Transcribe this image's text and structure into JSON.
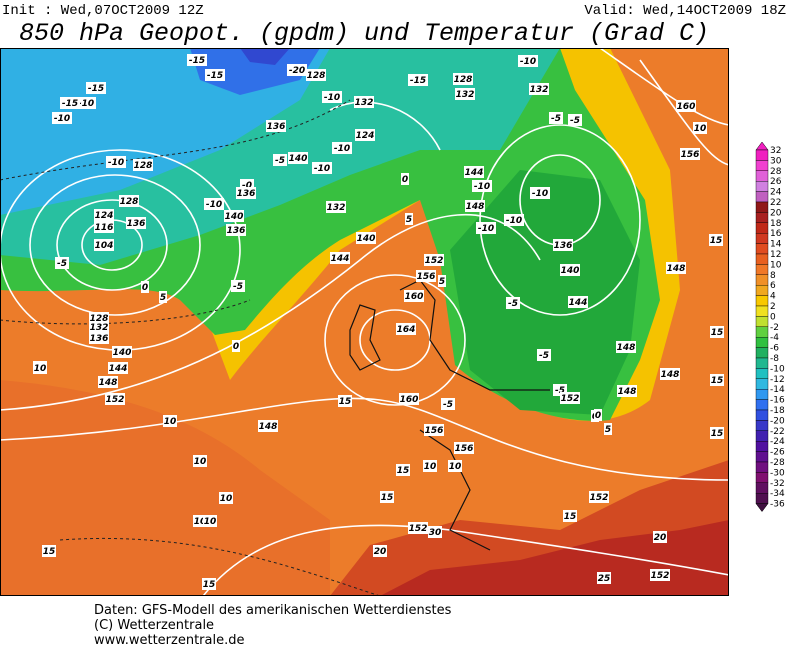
{
  "header": {
    "init": "Init : Wed,07OCT2009 12Z",
    "valid": "Valid: Wed,14OCT2009 18Z",
    "title": "850 hPa Geopot. (gpdm) und Temperatur (Grad C)"
  },
  "legend": {
    "levels": [
      32,
      30,
      28,
      26,
      24,
      22,
      20,
      18,
      16,
      14,
      12,
      10,
      8,
      6,
      4,
      2,
      0,
      -2,
      -4,
      -6,
      -8,
      -10,
      -12,
      -14,
      -16,
      -18,
      -20,
      -22,
      -24,
      -26,
      -28,
      -30,
      -32,
      -34,
      -36
    ],
    "colors": [
      "#f020c0",
      "#f040d0",
      "#e060d8",
      "#d080e0",
      "#c060c0",
      "#901818",
      "#a82020",
      "#c02818",
      "#d03820",
      "#e04c20",
      "#e86020",
      "#f07828",
      "#f09028",
      "#f0a820",
      "#f8c800",
      "#f0e020",
      "#c0e030",
      "#60d040",
      "#30c040",
      "#20b060",
      "#20b890",
      "#20c0c0",
      "#30b8e0",
      "#3098f0",
      "#3070f0",
      "#3050e0",
      "#3838c8",
      "#4020b0",
      "#5010a0",
      "#601090",
      "#701080",
      "#801070",
      "#601060",
      "#501050",
      "#401040"
    ]
  },
  "map": {
    "labels": [
      "-15",
      "-15",
      "-15",
      "-20",
      "128",
      "-10",
      "132",
      "-15",
      "128",
      "132",
      "-10",
      "132",
      "-5",
      "160",
      "10",
      "156",
      "-10",
      "-15",
      "-10",
      "128",
      "-10",
      "136",
      "124",
      "-10",
      "-5",
      "140",
      "-0",
      "-10",
      "140",
      "136",
      "-10",
      "136",
      "132",
      "0",
      "144",
      "-10",
      "148",
      "-10",
      "136",
      "-10",
      "0",
      "-10",
      "128",
      "124",
      "116",
      "104",
      "-5",
      "0",
      "5",
      "136",
      "5",
      "140",
      "144",
      "-5",
      "152",
      "156",
      "5",
      "-5",
      "148",
      "160",
      "-5",
      "140",
      "144",
      "15",
      "148",
      "10",
      "15",
      "-5",
      "164",
      "148",
      "0",
      "128",
      "132",
      "136",
      "140",
      "144",
      "148",
      "152",
      "10",
      "15",
      "10",
      "160",
      "15",
      "-5",
      "156",
      "-5",
      "152",
      "0",
      "5",
      "148",
      "15",
      "10",
      "10",
      "148",
      "15",
      "10",
      "156",
      "10",
      "10",
      "15",
      "10",
      "152",
      "152",
      "30",
      "15",
      "20",
      "20",
      "15",
      "15",
      "15",
      "152",
      "25"
    ]
  },
  "footer": {
    "lines": [
      "Daten: GFS-Modell des amerikanischen Wetterdienstes",
      "(C) Wetterzentrale",
      "www.wetterzentrale.de"
    ]
  }
}
